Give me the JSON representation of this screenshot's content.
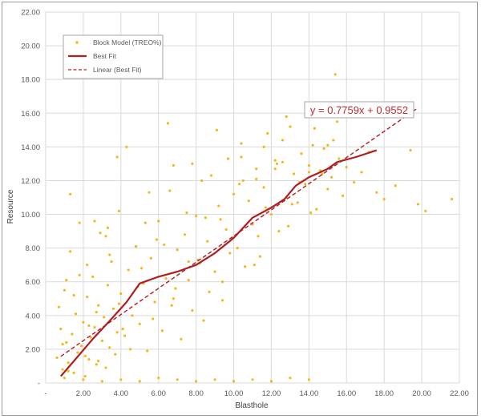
{
  "chart_data": {
    "type": "scatter",
    "title": "",
    "xlabel": "Blasthole",
    "ylabel": "Resource",
    "xlim": [
      0,
      22
    ],
    "ylim": [
      0,
      22
    ],
    "x_ticks": [
      "-",
      "2.00",
      "4.00",
      "6.00",
      "8.00",
      "10.00",
      "12.00",
      "14.00",
      "16.00",
      "18.00",
      "20.00",
      "22.00"
    ],
    "y_ticks": [
      "-",
      "2.00",
      "4.00",
      "6.00",
      "8.00",
      "10.00",
      "12.00",
      "14.00",
      "16.00",
      "18.00",
      "20.00",
      "22.00"
    ],
    "grid": true,
    "legend_position": "top-left",
    "legend": [
      {
        "label": "Block Model  (TREO%)",
        "style": "marker"
      },
      {
        "label": "Best Fit",
        "style": "solid-line"
      },
      {
        "label": "Linear (Best Fit)",
        "style": "dashed-line"
      }
    ],
    "series": [
      {
        "name": "Block Model  (TREO%)",
        "kind": "scatter",
        "color": "#f2b81d",
        "points_note_only_sampled_estimate": true,
        "x": [
          0.6,
          0.8,
          0.9,
          1.0,
          1.1,
          1.2,
          1.3,
          1.4,
          1.5,
          1.6,
          1.7,
          1.8,
          1.9,
          2.0,
          2.1,
          2.2,
          2.3,
          2.4,
          2.5,
          2.6,
          2.7,
          2.8,
          2.9,
          3.0,
          3.1,
          3.2,
          3.3,
          3.4,
          3.5,
          3.6,
          3.7,
          3.8,
          3.9,
          4.0,
          4.2,
          4.4,
          4.6,
          4.8,
          5.0,
          5.2,
          5.4,
          5.6,
          5.8,
          6.0,
          6.2,
          6.4,
          6.6,
          6.8,
          7.0,
          7.2,
          7.4,
          7.6,
          7.8,
          8.0,
          8.2,
          8.4,
          8.6,
          8.8,
          9.0,
          9.2,
          9.4,
          9.6,
          9.8,
          10.0,
          10.2,
          10.4,
          10.6,
          10.8,
          11.0,
          11.2,
          11.4,
          11.6,
          11.8,
          12.0,
          12.2,
          12.4,
          12.6,
          12.8,
          13.0,
          13.2,
          13.4,
          13.6,
          13.8,
          14.0,
          14.2,
          14.4,
          14.6,
          14.8,
          15.0,
          15.2,
          15.4,
          15.6,
          15.8,
          16.0,
          16.4,
          16.8,
          17.2,
          17.6,
          18.0,
          18.6,
          19.4,
          19.8,
          20.2,
          21.6,
          0.7,
          1.2,
          1.8,
          2.3,
          2.8,
          3.3,
          3.9,
          4.5,
          5.1,
          5.7,
          6.3,
          6.9,
          7.5,
          8.1,
          8.7,
          9.3,
          9.9,
          10.5,
          11.1,
          11.7,
          12.3,
          12.9,
          13.5,
          14.1,
          14.7,
          15.3,
          0.9,
          1.5,
          2.1,
          2.7,
          3.4,
          4.1,
          4.9,
          5.9,
          6.7,
          7.6,
          8.5,
          9.4,
          10.3,
          11.3,
          12.2,
          13.1,
          14.0,
          15.0,
          1.0,
          2.0,
          3.0,
          4.0,
          5.0,
          6.0,
          7.0,
          8.0,
          9.0,
          10.0,
          11.0,
          12.0,
          13.0,
          14.0,
          1.3,
          2.6,
          3.8,
          5.3,
          6.5,
          7.8,
          9.1,
          10.4,
          11.6,
          12.8,
          1.1,
          2.2,
          3.2,
          4.3,
          5.5,
          6.8,
          8.3,
          9.7,
          11.2,
          12.6,
          14.3,
          15.5
        ],
        "y": [
          1.5,
          3.2,
          0.8,
          5.5,
          2.4,
          1.2,
          7.8,
          2.9,
          0.6,
          4.1,
          1.8,
          9.5,
          2.2,
          3.6,
          0.4,
          5.1,
          1.4,
          2.7,
          6.3,
          3.3,
          1.1,
          4.6,
          8.9,
          2.5,
          3.9,
          0.9,
          5.8,
          2.1,
          7.2,
          4.4,
          1.7,
          3.0,
          10.2,
          5.3,
          2.8,
          6.7,
          4.0,
          8.1,
          3.5,
          5.9,
          1.9,
          7.4,
          4.8,
          9.6,
          3.1,
          6.2,
          11.4,
          5.0,
          7.9,
          2.6,
          8.8,
          6.1,
          4.3,
          9.9,
          7.1,
          3.7,
          8.4,
          12.3,
          6.6,
          10.5,
          4.9,
          9.1,
          7.7,
          11.2,
          8.0,
          13.4,
          6.9,
          10.8,
          9.4,
          12.1,
          7.5,
          11.6,
          14.8,
          10.0,
          12.7,
          9.0,
          13.1,
          11.0,
          15.2,
          12.4,
          10.7,
          13.6,
          11.8,
          12.9,
          14.1,
          10.3,
          12.6,
          13.9,
          11.5,
          12.2,
          18.3,
          13.3,
          11.1,
          12.8,
          11.9,
          12.5,
          13.7,
          11.3,
          10.9,
          11.7,
          13.8,
          10.6,
          10.2,
          10.9,
          4.5,
          0.7,
          6.4,
          3.4,
          1.3,
          9.2,
          4.7,
          2.0,
          6.8,
          3.8,
          8.2,
          5.6,
          10.1,
          7.3,
          5.4,
          9.7,
          8.6,
          12.0,
          7.0,
          10.4,
          13.0,
          9.3,
          11.9,
          10.1,
          12.4,
          14.4,
          2.3,
          5.2,
          1.6,
          4.2,
          7.6,
          3.2,
          5.7,
          8.5,
          4.6,
          7.2,
          9.8,
          6.0,
          11.8,
          8.7,
          13.2,
          10.6,
          12.5,
          14.1,
          0.3,
          0.2,
          0.1,
          0.2,
          0.1,
          0.3,
          0.2,
          0.1,
          0.2,
          0.1,
          0.2,
          0.1,
          0.3,
          0.2,
          11.2,
          9.6,
          13.4,
          9.5,
          15.4,
          13.0,
          15.0,
          14.2,
          14.0,
          15.8,
          6.1,
          7.0,
          8.7,
          14.0,
          11.3,
          12.9,
          12.0,
          13.3,
          12.7,
          14.4,
          15.1,
          15.5
        ]
      },
      {
        "name": "Best Fit",
        "kind": "line",
        "color": "#b01c20",
        "x": [
          0.8,
          1.5,
          2.5,
          3.5,
          4.3,
          5.0,
          6.0,
          7.0,
          8.0,
          9.0,
          10.0,
          11.0,
          12.0,
          12.7,
          13.3,
          14.0,
          15.0,
          15.5,
          16.5,
          17.6
        ],
        "y": [
          0.4,
          1.3,
          2.6,
          3.8,
          4.8,
          5.9,
          6.3,
          6.6,
          7.0,
          7.7,
          8.6,
          9.8,
          10.4,
          10.9,
          11.7,
          12.2,
          12.7,
          13.1,
          13.4,
          13.8
        ]
      },
      {
        "name": "Linear (Best Fit)",
        "kind": "trendline",
        "color": "#b01c20",
        "x": [
          0.8,
          19.7
        ],
        "y": [
          1.576,
          16.24
        ]
      }
    ],
    "annotations": [
      {
        "text": "y = 0.7759x + 0.9552",
        "color": "#c0282b"
      }
    ]
  }
}
